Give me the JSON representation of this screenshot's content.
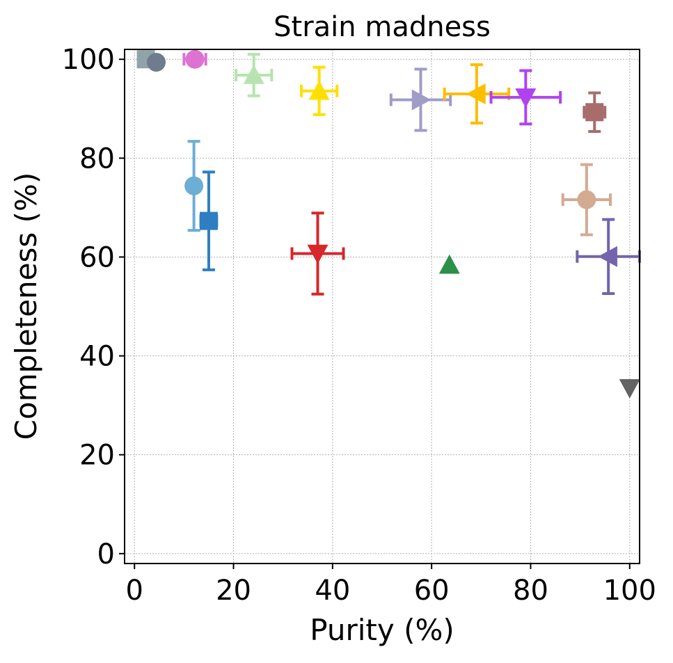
{
  "chart_data": {
    "type": "scatter",
    "title": "Strain madness",
    "xlabel": "Purity (%)",
    "ylabel": "Completeness (%)",
    "xlim": [
      -2,
      102
    ],
    "ylim": [
      -2,
      102
    ],
    "xticks": [
      0,
      20,
      40,
      60,
      80,
      100
    ],
    "yticks": [
      0,
      20,
      40,
      60,
      80,
      100
    ],
    "grid": true,
    "legend": "none",
    "points": [
      {
        "marker": "square",
        "color": "#8fa3a9",
        "x": 2.3,
        "y": 100.0,
        "xerr": 0,
        "yerr": 0
      },
      {
        "marker": "circle",
        "color": "#6f7b8e",
        "x": 4.4,
        "y": 99.4,
        "xerr": 0,
        "yerr": 1.0
      },
      {
        "marker": "circle",
        "color": "#de72d2",
        "x": 12.2,
        "y": 100.0,
        "xerr": 2.2,
        "yerr": 0
      },
      {
        "marker": "triangle-up",
        "color": "#b7e3b0",
        "x": 24.1,
        "y": 96.8,
        "xerr": 3.6,
        "yerr": 4.2
      },
      {
        "marker": "triangle-up",
        "color": "#ffdf00",
        "x": 37.3,
        "y": 93.6,
        "xerr": 3.6,
        "yerr": 4.8
      },
      {
        "marker": "triangle-right",
        "color": "#a09cc8",
        "x": 57.8,
        "y": 91.8,
        "xerr": 6.0,
        "yerr": 6.2
      },
      {
        "marker": "triangle-left",
        "color": "#fdbd00",
        "x": 69.1,
        "y": 93.0,
        "xerr": 6.5,
        "yerr": 5.9
      },
      {
        "marker": "triangle-down",
        "color": "#b042f0",
        "x": 79.0,
        "y": 92.3,
        "xerr": 7.0,
        "yerr": 5.4
      },
      {
        "marker": "square",
        "color": "#a86c6c",
        "x": 92.9,
        "y": 89.3,
        "xerr": 2.1,
        "yerr": 3.9
      },
      {
        "marker": "circle",
        "color": "#6baed6",
        "x": 12.0,
        "y": 74.4,
        "xerr": 0,
        "yerr": 9.0
      },
      {
        "marker": "square",
        "color": "#2f7ec1",
        "x": 15.0,
        "y": 67.3,
        "xerr": 1.6,
        "yerr": 9.9
      },
      {
        "marker": "triangle-down",
        "color": "#d6272a",
        "x": 37.0,
        "y": 60.7,
        "xerr": 5.2,
        "yerr": 8.2
      },
      {
        "marker": "triangle-up",
        "color": "#2b9048",
        "x": 63.6,
        "y": 58.4,
        "xerr": 0,
        "yerr": 0
      },
      {
        "marker": "circle",
        "color": "#d4aa91",
        "x": 91.3,
        "y": 71.6,
        "xerr": 4.8,
        "yerr": 7.1
      },
      {
        "marker": "triangle-left",
        "color": "#7364ad",
        "x": 95.7,
        "y": 60.1,
        "xerr": 6.3,
        "yerr": 7.5
      },
      {
        "marker": "triangle-down",
        "color": "#636363",
        "x": 100.0,
        "y": 33.5,
        "xerr": 0,
        "yerr": 0
      }
    ]
  }
}
